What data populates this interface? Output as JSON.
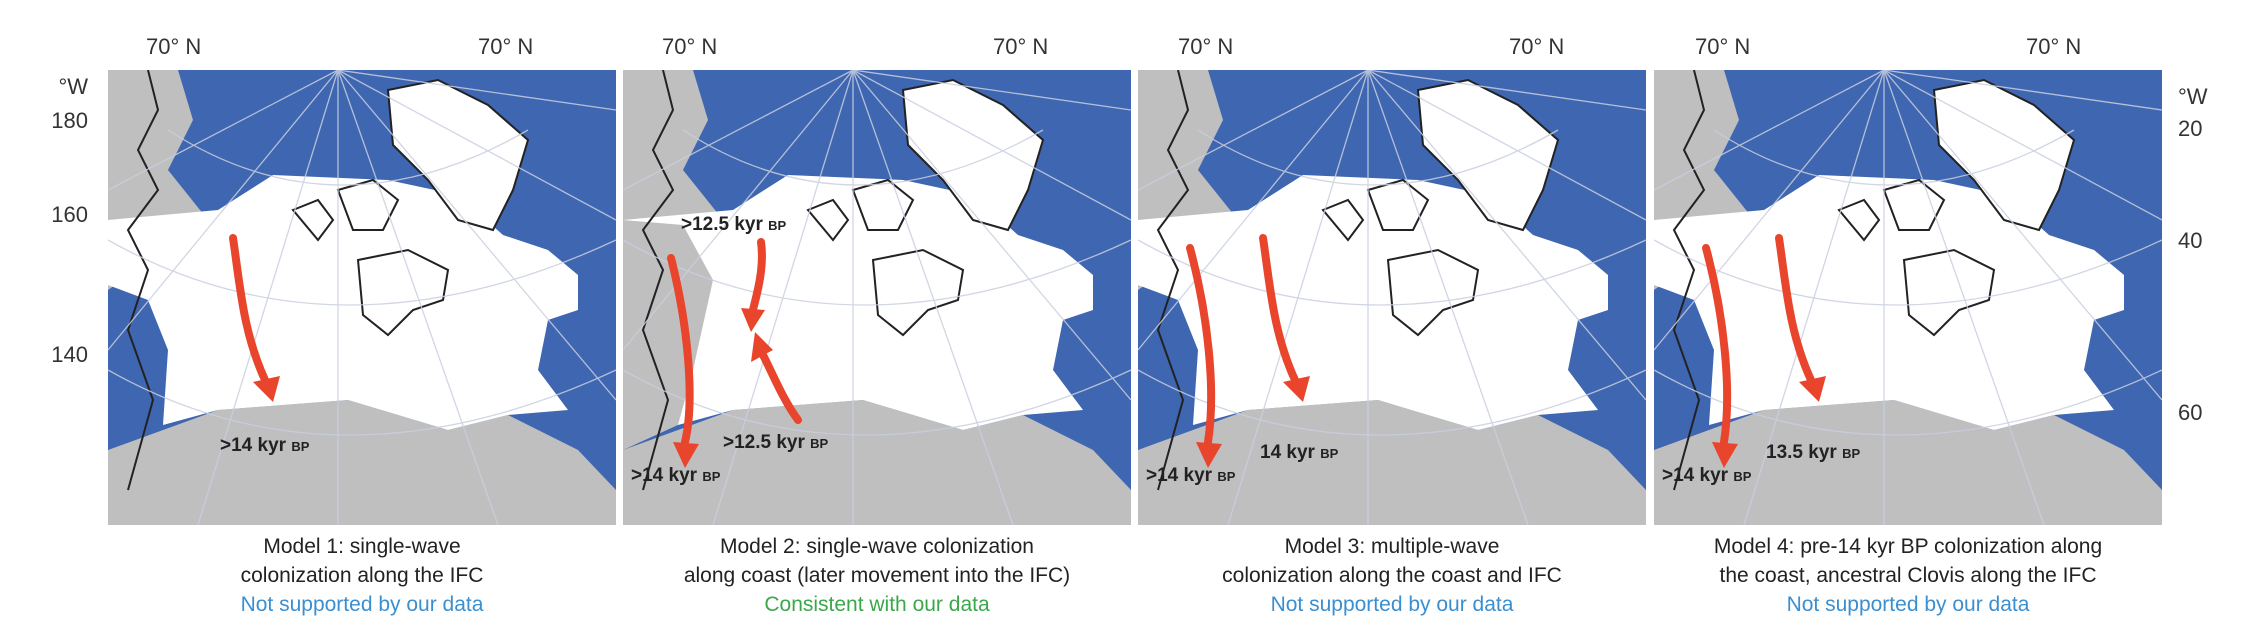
{
  "top_labels": [
    "70° N",
    "70° N"
  ],
  "left_axis": {
    "unit": "°W",
    "ticks": [
      "180",
      "160",
      "140"
    ]
  },
  "right_axis": {
    "unit": "°W",
    "ticks": [
      "20",
      "40",
      "60"
    ]
  },
  "panels": [
    {
      "caption_line1": "Model 1: single-wave",
      "caption_line2": "colonization along the IFC",
      "verdict": "Not supported by our data",
      "labels": [
        {
          "num": ">14 kyr",
          "unit": "BP"
        }
      ]
    },
    {
      "caption_line1": "Model 2: single-wave colonization",
      "caption_line2": "along coast (later movement into the IFC)",
      "verdict": "Consistent with our data",
      "labels": [
        {
          "num": ">12.5 kyr",
          "unit": "BP"
        },
        {
          "num": ">12.5 kyr",
          "unit": "BP"
        },
        {
          "num": ">14 kyr",
          "unit": "BP"
        }
      ]
    },
    {
      "caption_line1": "Model 3: multiple-wave",
      "caption_line2": "colonization along the coast and IFC",
      "verdict": "Not supported by our data",
      "labels": [
        {
          "num": "14 kyr",
          "unit": "BP"
        },
        {
          "num": ">14 kyr",
          "unit": "BP"
        }
      ]
    },
    {
      "caption_line1": "Model 4: pre-14 kyr BP colonization along",
      "caption_line2": "the coast, ancestral Clovis along the IFC",
      "verdict": "Not supported by our data",
      "labels": [
        {
          "num": "13.5 kyr",
          "unit": "BP"
        },
        {
          "num": ">14 kyr",
          "unit": "BP"
        }
      ]
    }
  ],
  "colors": {
    "ocean": "#3f66b0",
    "ice": "#ffffff",
    "land": "#bfbfbf",
    "arrow": "#e8452c",
    "not_supported": "#3a8fd1",
    "consistent": "#3aa84a"
  }
}
